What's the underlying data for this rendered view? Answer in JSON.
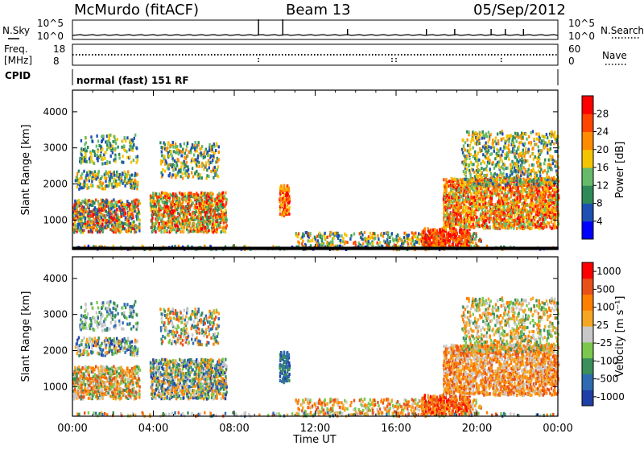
{
  "header": {
    "station": "McMurdo (fitACF)",
    "beam": "Beam 13",
    "date": "05/Sep/2012"
  },
  "strip_labels": {
    "nsky": "N.Sky",
    "nsearch": "N.Search",
    "freq_line1": "Freq.",
    "freq_line2": "[MHz]",
    "nave": "Nave",
    "cpid": "CPID",
    "cpid_text": "normal (fast) 151 RF"
  },
  "colors": {
    "power_scale": [
      "#0000ff",
      "#1e50b4",
      "#2e8b57",
      "#66bb6a",
      "#f5c400",
      "#ff8c00",
      "#ff4500",
      "#ff0000"
    ],
    "velocity_scale": [
      "#1f3fa6",
      "#2e6bb0",
      "#3a8f5a",
      "#7cc84e",
      "#c8c8c8",
      "#f5a623",
      "#ff7f00",
      "#e8501a",
      "#ff0000"
    ]
  },
  "chart_data": [
    {
      "type": "line",
      "name": "noise-strip",
      "left_ticks": [
        "10^5",
        "10^0"
      ],
      "right_ticks": [
        "10^5",
        "10^0"
      ],
      "spikes_at_hours": [
        9.2,
        10.4,
        13.6,
        17.5,
        18.9,
        20.7,
        21.4,
        22.3
      ]
    },
    {
      "type": "line",
      "name": "freq-nave-strip",
      "left_ticks": [
        "18",
        "8"
      ],
      "right_ticks": [
        "60",
        "0"
      ],
      "dips_at_hours": [
        9.2,
        15.8,
        16.0,
        21.2
      ]
    },
    {
      "type": "heatmap",
      "name": "power-panel",
      "xlabel": "",
      "ylabel": "Slant Range [km]",
      "x_range_hours": [
        0,
        24
      ],
      "ylim": [
        180,
        4600
      ],
      "yticks": [
        "1000",
        "2000",
        "3000",
        "4000"
      ],
      "colorbar_label": "Power [dB]",
      "colorbar_ticks": [
        "28",
        "24",
        "20",
        "16",
        "12",
        "8",
        "4"
      ]
    },
    {
      "type": "heatmap",
      "name": "velocity-panel",
      "xlabel": "Time UT",
      "ylabel": "Slant Range [km]",
      "x_range_hours": [
        0,
        24
      ],
      "ylim": [
        180,
        4600
      ],
      "xticks": [
        "00:00",
        "04:00",
        "08:00",
        "12:00",
        "16:00",
        "20:00",
        "00:00"
      ],
      "yticks": [
        "1000",
        "2000",
        "3000",
        "4000"
      ],
      "colorbar_label": "Velocity [m s⁻¹]",
      "colorbar_ticks": [
        "1000",
        "500",
        "100",
        "25",
        "-25",
        "-100",
        "-500",
        "-1000"
      ]
    }
  ]
}
